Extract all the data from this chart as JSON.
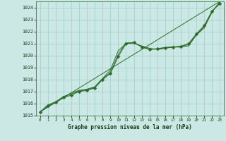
{
  "xlabel": "Graphe pression niveau de la mer (hPa)",
  "xlim": [
    -0.5,
    23.5
  ],
  "ylim": [
    1015,
    1024.5
  ],
  "yticks": [
    1015,
    1016,
    1017,
    1018,
    1019,
    1020,
    1021,
    1022,
    1023,
    1024
  ],
  "xticks": [
    0,
    1,
    2,
    3,
    4,
    5,
    6,
    7,
    8,
    9,
    10,
    11,
    12,
    13,
    14,
    15,
    16,
    17,
    18,
    19,
    20,
    21,
    22,
    23
  ],
  "background_color": "#cce8e4",
  "grid_color": "#9eccc6",
  "line_color": "#2d6b2d",
  "line1_x": [
    0,
    1,
    2,
    3,
    4,
    5,
    6,
    7,
    8,
    9,
    10,
    11,
    12,
    13,
    14,
    15,
    16,
    17,
    18,
    19,
    20,
    21,
    22,
    23
  ],
  "line1_y": [
    1015.3,
    1015.8,
    1016.1,
    1016.5,
    1016.7,
    1017.0,
    1017.1,
    1017.3,
    1018.0,
    1018.5,
    1019.9,
    1021.0,
    1021.1,
    1020.7,
    1020.5,
    1020.55,
    1020.65,
    1020.7,
    1020.75,
    1021.0,
    1021.8,
    1022.5,
    1023.7,
    1024.3
  ],
  "line2_x": [
    0,
    1,
    2,
    3,
    4,
    5,
    6,
    7,
    8,
    9,
    10,
    11,
    12,
    13,
    14,
    15,
    16,
    17,
    18,
    19,
    20,
    21,
    22,
    23
  ],
  "line2_y": [
    1015.3,
    1015.8,
    1016.1,
    1016.5,
    1016.9,
    1017.1,
    1017.2,
    1017.4,
    1018.1,
    1018.8,
    1020.4,
    1021.0,
    1021.0,
    1020.8,
    1020.6,
    1020.5,
    1020.6,
    1020.7,
    1020.7,
    1020.8,
    1021.7,
    1022.3,
    1023.6,
    1024.5
  ],
  "line3_x": [
    0,
    1,
    2,
    3,
    4,
    5,
    6,
    7,
    8,
    9,
    10,
    11,
    12,
    13,
    14,
    15,
    16,
    17,
    18,
    19,
    20,
    21,
    22,
    23
  ],
  "line3_y": [
    1015.3,
    1015.9,
    1016.15,
    1016.6,
    1016.8,
    1017.05,
    1017.15,
    1017.35,
    1018.05,
    1018.6,
    1020.1,
    1021.05,
    1021.07,
    1020.75,
    1020.52,
    1020.57,
    1020.67,
    1020.72,
    1020.77,
    1020.9,
    1021.75,
    1022.4,
    1023.65,
    1024.4
  ],
  "line4_x": [
    0,
    23
  ],
  "line4_y": [
    1015.3,
    1024.5
  ],
  "markersize": 2.5
}
